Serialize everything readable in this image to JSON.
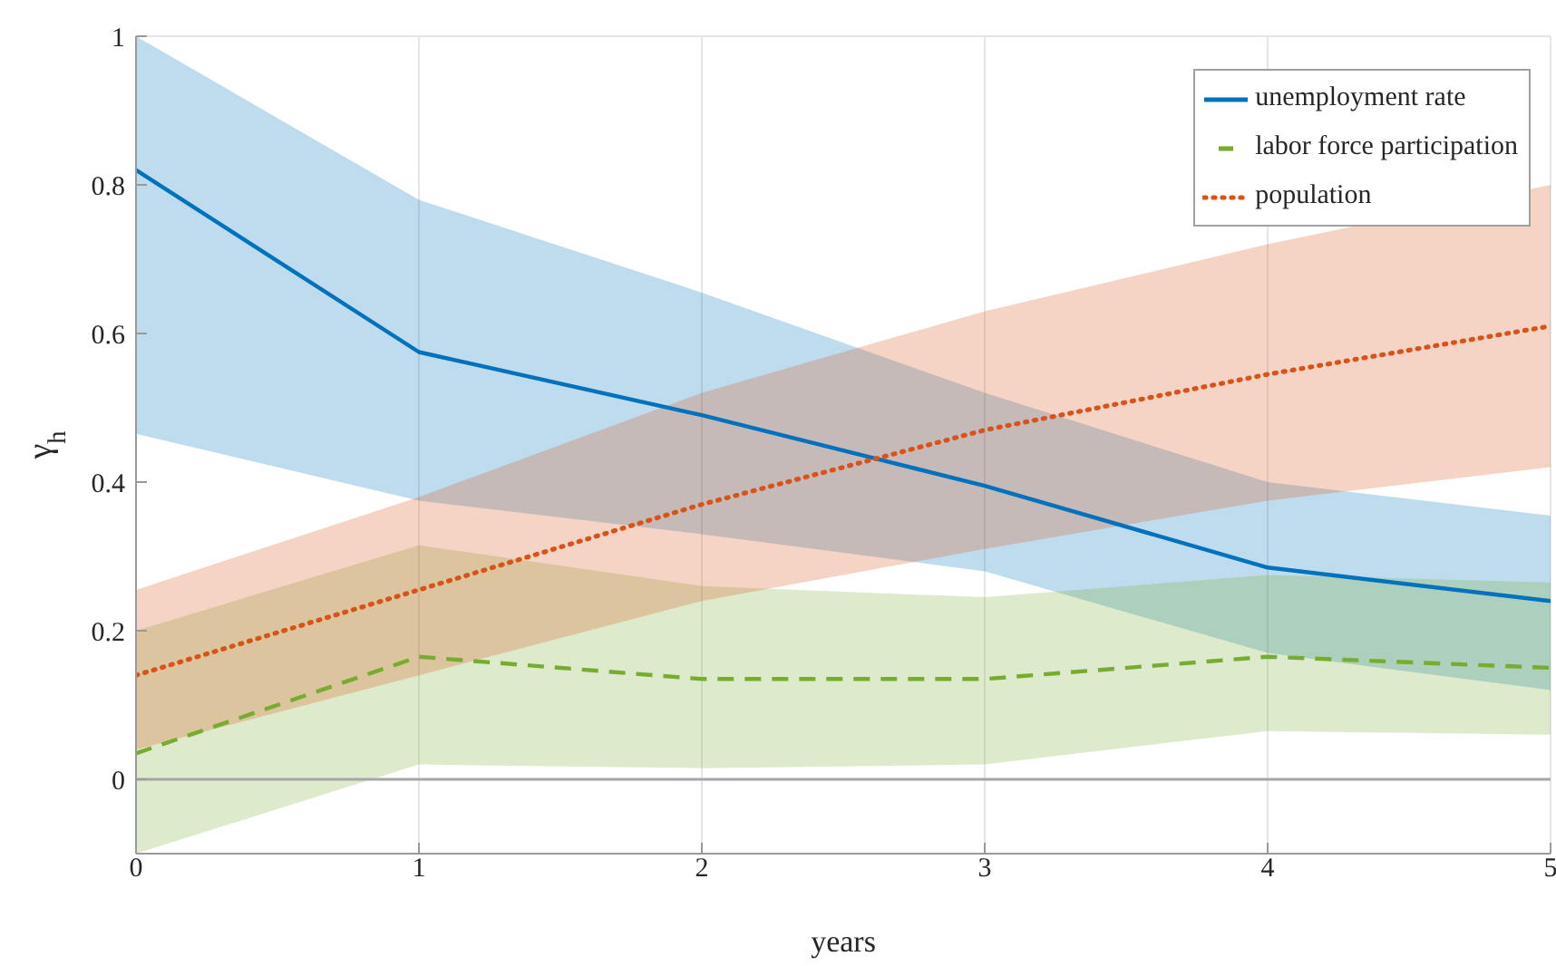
{
  "chart_data": {
    "type": "line",
    "xlabel": "years",
    "ylabel": "γ$_{h}$",
    "x": [
      0,
      1,
      2,
      3,
      4,
      5
    ],
    "xlim": [
      0,
      5
    ],
    "xticks": [
      0,
      1,
      2,
      3,
      4,
      5
    ],
    "ylim": [
      -0.1,
      1
    ],
    "yticks": [
      0,
      0.2,
      0.4,
      0.6,
      0.8,
      1
    ],
    "grid": true,
    "legend": "top right",
    "marker": "none",
    "ref_lines": [
      {
        "axis": "y",
        "value": 0,
        "color": "#a6a6a6"
      }
    ],
    "series": [
      {
        "name": "unemployment rate",
        "color": "#0072bd",
        "line_style": "solid",
        "values": [
          0.82,
          0.575,
          0.49,
          0.395,
          0.285,
          0.24
        ],
        "lower": [
          0.465,
          0.375,
          0.33,
          0.28,
          0.17,
          0.12
        ],
        "upper": [
          1,
          0.78,
          0.655,
          0.52,
          0.4,
          0.355
        ]
      },
      {
        "name": "labor force participation",
        "color": "#77ac30",
        "line_style": "dashed",
        "values": [
          0.035,
          0.165,
          0.135,
          0.135,
          0.165,
          0.15
        ],
        "lower": [
          -0.1,
          0.02,
          0.015,
          0.02,
          0.065,
          0.06
        ],
        "upper": [
          0.2,
          0.315,
          0.26,
          0.245,
          0.275,
          0.265
        ]
      },
      {
        "name": "population",
        "color": "#d95319",
        "line_style": "dotted",
        "values": [
          0.14,
          0.255,
          0.37,
          0.47,
          0.545,
          0.61
        ],
        "lower": [
          0.04,
          0.14,
          0.24,
          0.31,
          0.375,
          0.42
        ],
        "upper": [
          0.255,
          0.38,
          0.52,
          0.63,
          0.72,
          0.8
        ]
      }
    ]
  }
}
